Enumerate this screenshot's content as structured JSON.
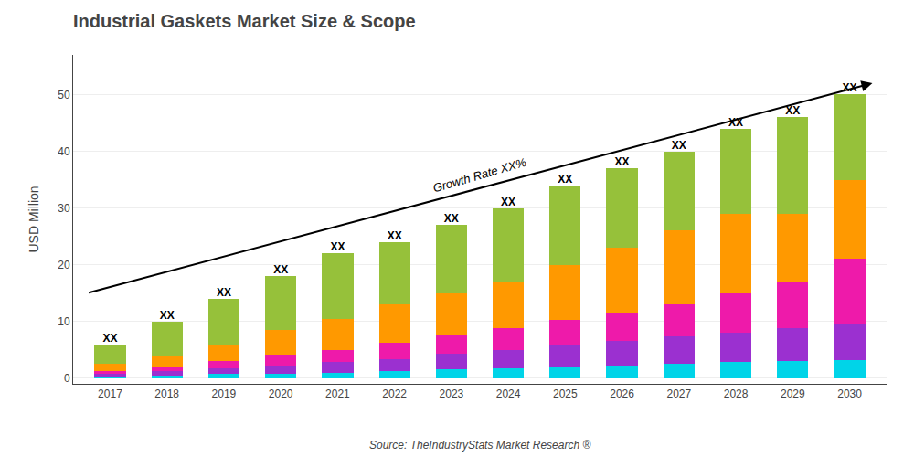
{
  "chart_data": {
    "type": "bar",
    "stacked": true,
    "title": "Industrial Gaskets Market Size & Scope",
    "ylabel": "USD Million",
    "source": "Source: TheIndustryStats Market Research ®",
    "categories": [
      "2017",
      "2018",
      "2019",
      "2020",
      "2021",
      "2022",
      "2023",
      "2024",
      "2025",
      "2026",
      "2027",
      "2028",
      "2029",
      "2030"
    ],
    "series": [
      {
        "color": "#00d4e8",
        "values": [
          0.3,
          0.5,
          0.7,
          0.8,
          1.0,
          1.2,
          1.5,
          1.8,
          2.0,
          2.3,
          2.5,
          2.8,
          3.0,
          3.2
        ]
      },
      {
        "color": "#9b30d0",
        "values": [
          0.4,
          0.7,
          1.0,
          1.5,
          1.8,
          2.2,
          2.8,
          3.2,
          3.8,
          4.2,
          4.8,
          5.2,
          5.8,
          6.5
        ]
      },
      {
        "color": "#ee1aaa",
        "values": [
          0.6,
          0.9,
          1.3,
          1.8,
          2.2,
          2.8,
          3.2,
          3.8,
          4.5,
          5.0,
          5.7,
          7.0,
          8.2,
          11.3
        ]
      },
      {
        "color": "#ff9900",
        "values": [
          1.2,
          1.9,
          3.0,
          4.4,
          5.5,
          6.8,
          7.5,
          8.2,
          9.7,
          11.5,
          13.0,
          14.0,
          12.0,
          14.0
        ]
      },
      {
        "color": "#96c13a",
        "values": [
          3.5,
          6.0,
          8.0,
          9.5,
          11.5,
          11.0,
          12.0,
          13.0,
          14.0,
          14.0,
          14.0,
          15.0,
          17.0,
          15.0
        ]
      }
    ],
    "totals": [
      6,
      10,
      14,
      18,
      22,
      24,
      27,
      30,
      34,
      37,
      40,
      44,
      46,
      50
    ],
    "total_labels": [
      "XX",
      "XX",
      "XX",
      "XX",
      "XX",
      "XX",
      "XX",
      "XX",
      "XX",
      "XX",
      "XX",
      "XX",
      "XX",
      "XX"
    ],
    "arrow": {
      "x": [
        -0.4,
        13.4
      ],
      "y": [
        15,
        52
      ],
      "label": "Growth Rate XX%"
    },
    "ylim": [
      -1,
      57
    ],
    "yticks": [
      0,
      10,
      20,
      30,
      40,
      50
    ],
    "grid": true
  }
}
